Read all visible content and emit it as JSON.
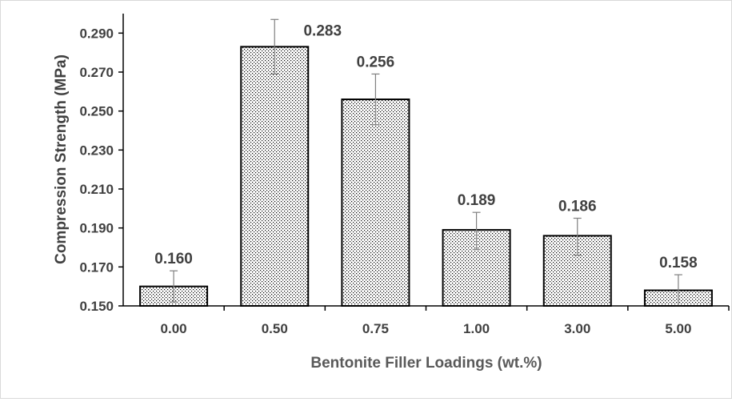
{
  "chart_data": {
    "type": "bar",
    "title": "",
    "xlabel": "Bentonite Filler Loadings (wt.%)",
    "ylabel": "Compression Strength (MPa)",
    "categories": [
      "0.00",
      "0.50",
      "0.75",
      "1.00",
      "3.00",
      "5.00"
    ],
    "values": [
      0.16,
      0.283,
      0.256,
      0.189,
      0.186,
      0.158
    ],
    "value_labels": [
      "0.160",
      "0.283",
      "0.256",
      "0.189",
      "0.186",
      "0.158"
    ],
    "error_bars": [
      {
        "low": 0.152,
        "high": 0.168
      },
      {
        "low": 0.269,
        "high": 0.297
      },
      {
        "low": 0.243,
        "high": 0.269
      },
      {
        "low": 0.179,
        "high": 0.198
      },
      {
        "low": 0.176,
        "high": 0.195
      },
      {
        "low": 0.15,
        "high": 0.166
      }
    ],
    "ylim": [
      0.15,
      0.3
    ],
    "yticks": [
      "0.150",
      "0.170",
      "0.190",
      "0.210",
      "0.230",
      "0.250",
      "0.270",
      "0.290"
    ],
    "grid": false,
    "legend": "none",
    "colors": {
      "bar_fill": "#ffffff",
      "bar_pattern_dots": "#000000",
      "bar_outline": "#000000",
      "text": "#404040",
      "axis": "#000000",
      "error_bar": "#808080"
    }
  }
}
